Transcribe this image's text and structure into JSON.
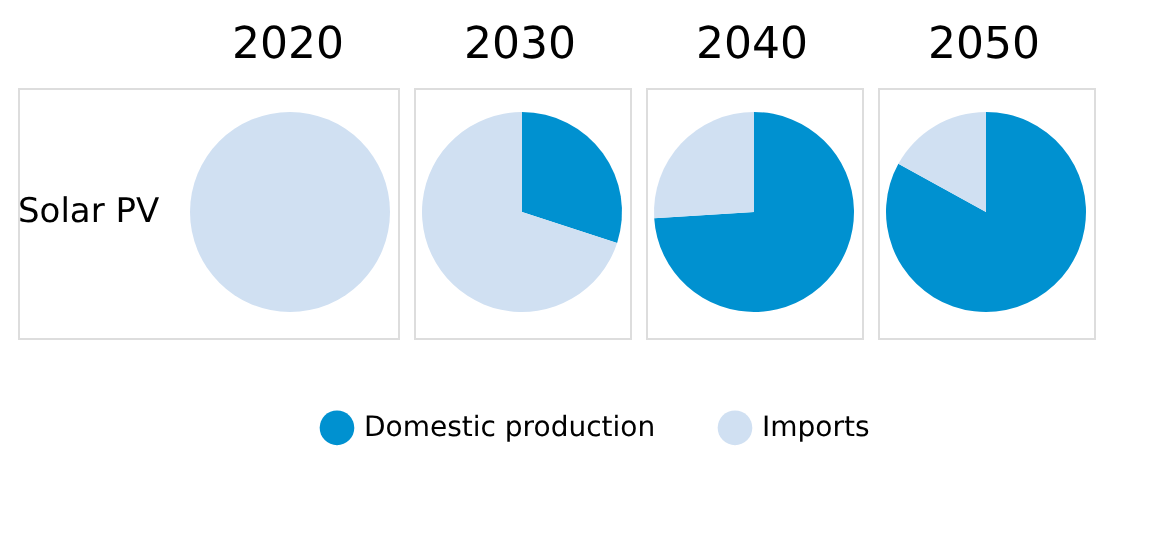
{
  "chart_data": [
    {
      "type": "pie",
      "title": "2020",
      "ylabel": "Solar PV",
      "categories": [
        "Domestic production",
        "Imports"
      ],
      "values": [
        0,
        100
      ],
      "colors": [
        "#0091d0",
        "#d0e0f2"
      ],
      "legend": "bottom"
    },
    {
      "type": "pie",
      "title": "2030",
      "values": [
        30,
        70
      ],
      "colors": [
        "#0091d0",
        "#d0e0f2"
      ]
    },
    {
      "type": "pie",
      "title": "2040",
      "values": [
        74,
        26
      ],
      "colors": [
        "#0091d0",
        "#d0e0f2"
      ]
    },
    {
      "type": "pie",
      "title": "2050",
      "values": [
        83,
        17
      ],
      "colors": [
        "#0091d0",
        "#d0e0f2"
      ]
    }
  ]
}
